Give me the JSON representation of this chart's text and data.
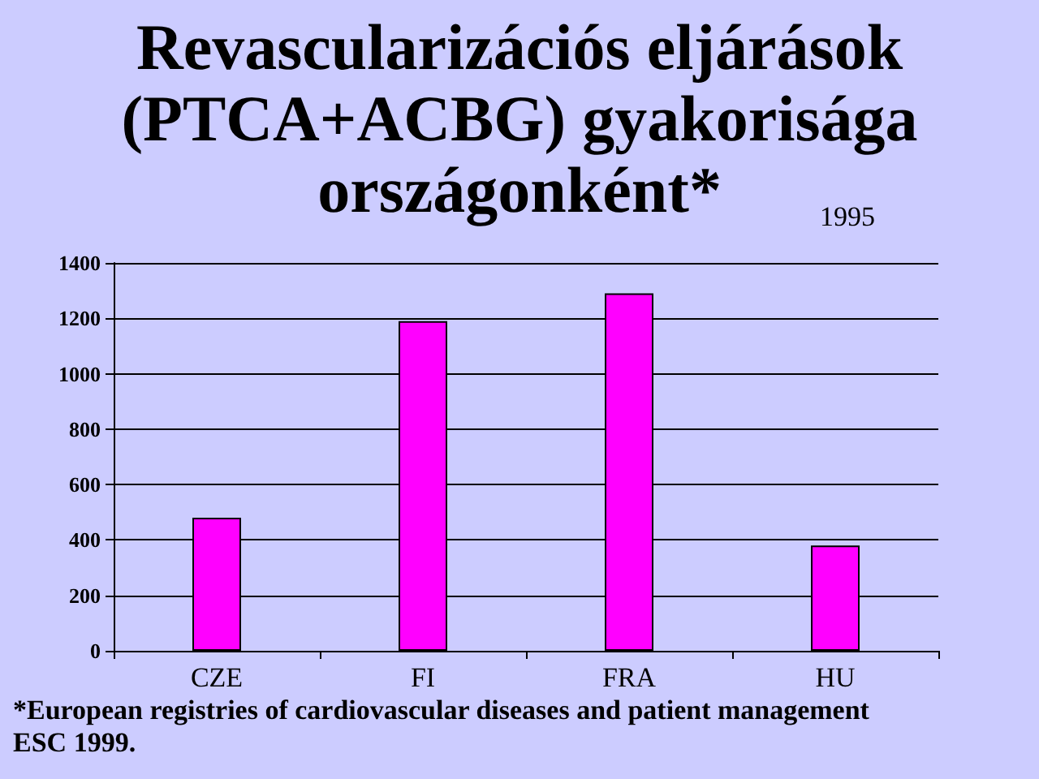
{
  "chart_data": {
    "type": "bar",
    "title": "Revascularizációs eljárások\n(PTCA+ACBG) gyakorisága\nországonként*",
    "subtitle": "1995",
    "categories": [
      "CZE",
      "FI",
      "FRA",
      "HU"
    ],
    "values": [
      480,
      1190,
      1290,
      380
    ],
    "color": "#ff00ff",
    "ylim": [
      0,
      1400
    ],
    "yticks": [
      0,
      200,
      400,
      600,
      800,
      1000,
      1200,
      1400
    ],
    "grid": "y",
    "annotations": [
      "*European registries of cardiovascular diseases and patient management  ESC 1999."
    ]
  }
}
